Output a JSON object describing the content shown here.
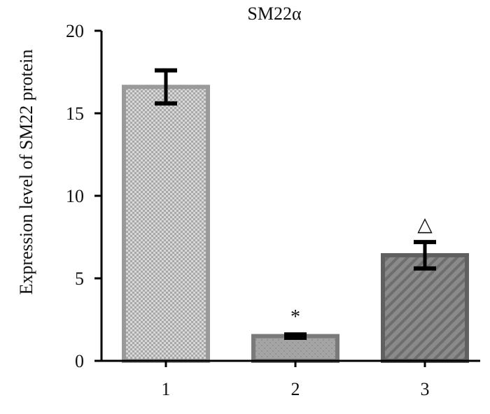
{
  "chart_data": {
    "type": "bar",
    "title": "SM22α",
    "xlabel": "",
    "ylabel": "Expression level of SM22 protein",
    "categories": [
      "1",
      "2",
      "3"
    ],
    "values": [
      16.6,
      1.5,
      6.4
    ],
    "errors": [
      1.0,
      0.1,
      0.8
    ],
    "annotations": [
      "",
      "*",
      "△"
    ],
    "ylim": [
      0,
      20
    ],
    "yticks": [
      0,
      5,
      10,
      15,
      20
    ],
    "grid": false,
    "bar_styles": [
      {
        "fill": "#c8c8c8",
        "stroke": "#9a9a9a",
        "pattern": "checker"
      },
      {
        "fill": "#9e9e9e",
        "stroke": "#7a7a7a",
        "pattern": "dots"
      },
      {
        "fill": "#7a7a7a",
        "stroke": "#606060",
        "pattern": "diagonal"
      }
    ]
  }
}
